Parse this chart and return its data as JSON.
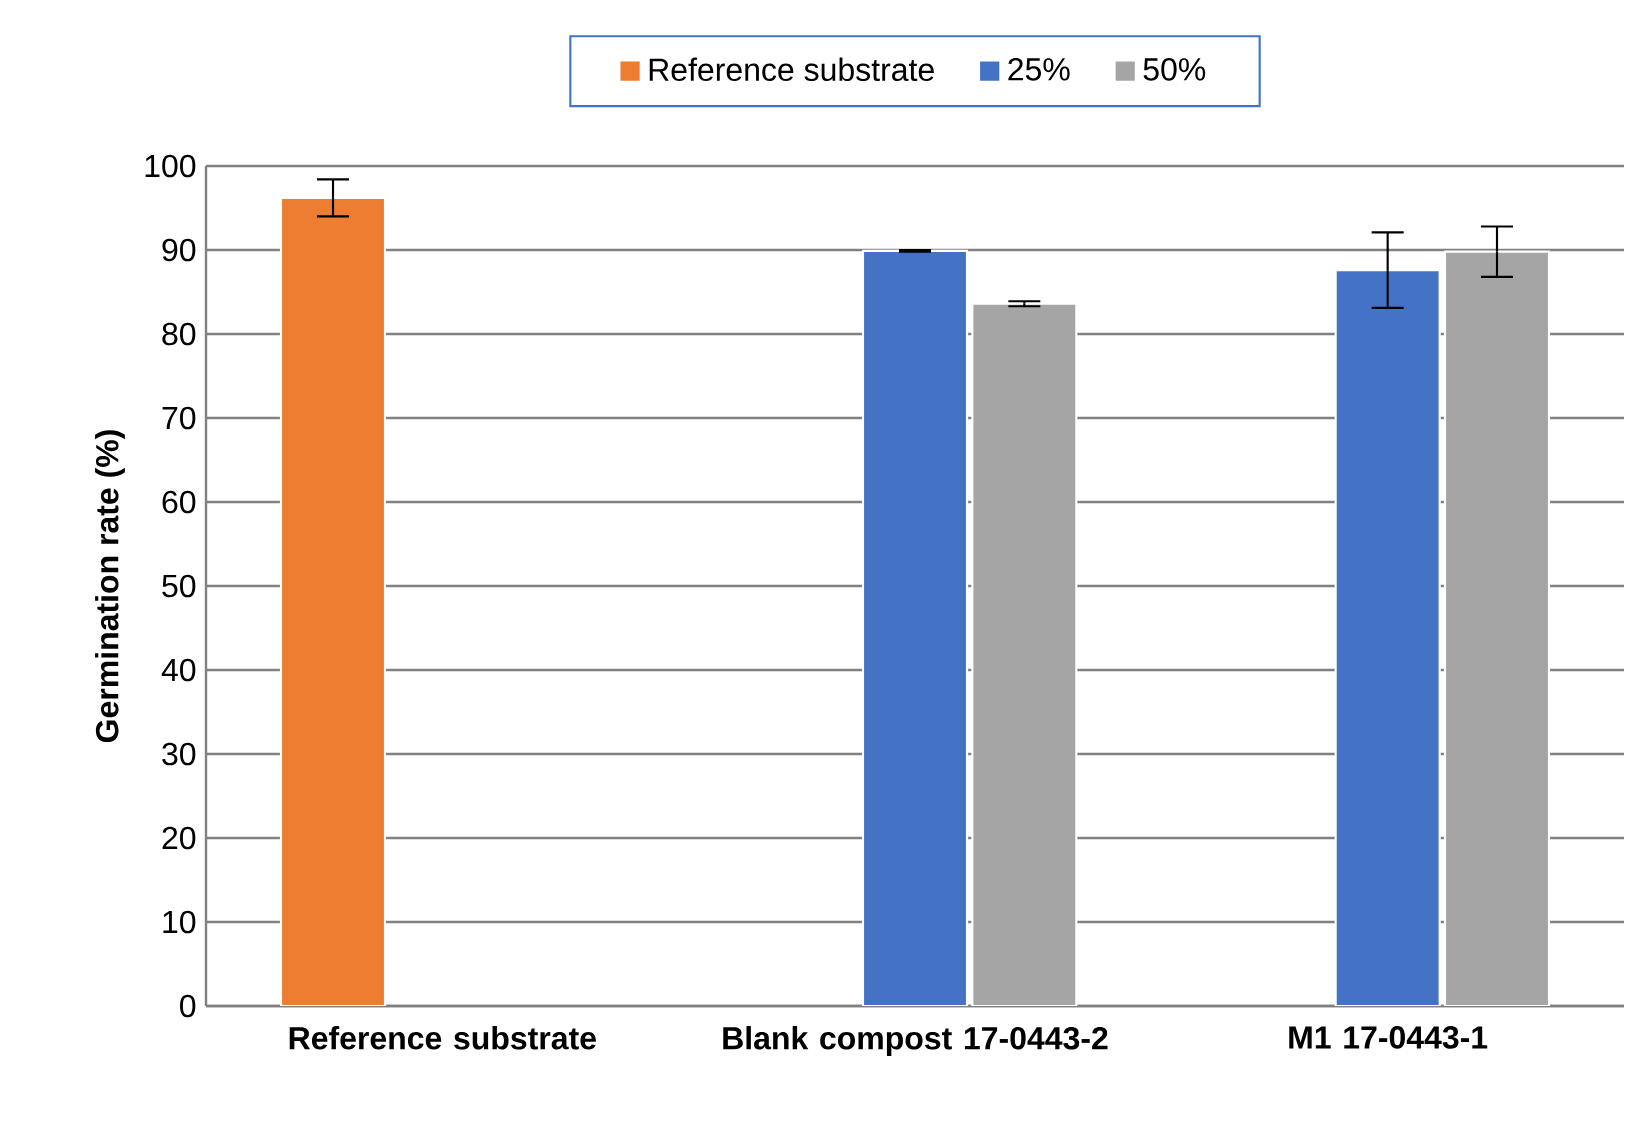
{
  "chart_data": {
    "type": "bar",
    "ylabel": "Germination rate (%)",
    "categories": [
      "Reference substrate",
      "Blank compost 17-0443-2",
      "M1 17-0443-1"
    ],
    "series": [
      {
        "name": "Reference substrate",
        "color": "#ed7d31",
        "values": [
          96.2,
          null,
          null
        ],
        "errors": [
          2.2,
          null,
          null
        ]
      },
      {
        "name": "25%",
        "color": "#4472c4",
        "values": [
          null,
          89.9,
          87.6
        ],
        "errors": [
          null,
          0.1,
          4.5
        ]
      },
      {
        "name": "50%",
        "color": "#a5a5a5",
        "values": [
          null,
          83.6,
          89.8
        ],
        "errors": [
          null,
          0.3,
          3.0
        ]
      }
    ],
    "ylim": [
      0,
      100
    ],
    "yticks": [
      0,
      10,
      20,
      30,
      40,
      50,
      60,
      70,
      80,
      90,
      100
    ],
    "grid": "y",
    "legend": "top"
  }
}
